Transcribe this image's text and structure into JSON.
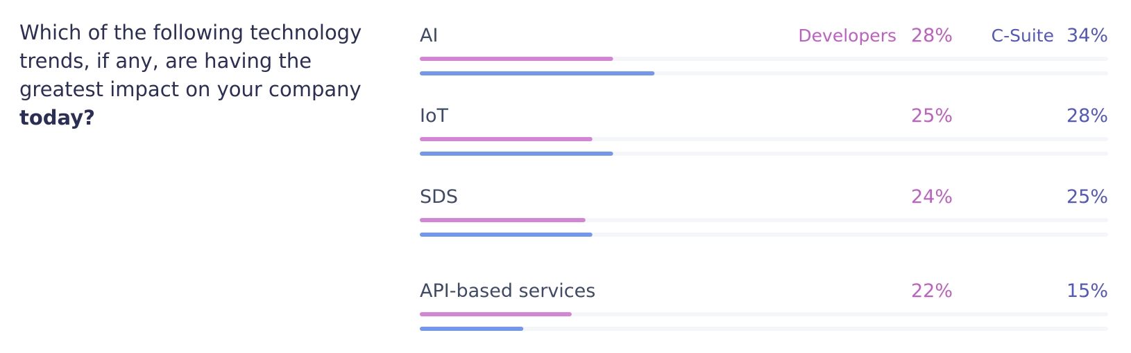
{
  "question": {
    "text_before": "Which of the following technology trends, if any, are having the greatest impact on your company",
    "emphasis": "today?"
  },
  "colors": {
    "developers": "#d583d6",
    "developers_text": "#bf5fc4",
    "csuite": "#7396f0",
    "csuite_text": "#5257c2",
    "track": "#f4f6fa",
    "category_text": "#3f4a66"
  },
  "chart_data": {
    "type": "bar",
    "orientation": "horizontal",
    "categories": [
      "AI",
      "IoT",
      "SDS",
      "API-based services"
    ],
    "series": [
      {
        "name": "Developers",
        "values": [
          28,
          25,
          24,
          22
        ]
      },
      {
        "name": "C-Suite",
        "values": [
          34,
          28,
          25,
          15
        ]
      }
    ],
    "value_suffix": "%",
    "xlim": [
      0,
      100
    ],
    "grid": false,
    "legend": "top-right"
  }
}
